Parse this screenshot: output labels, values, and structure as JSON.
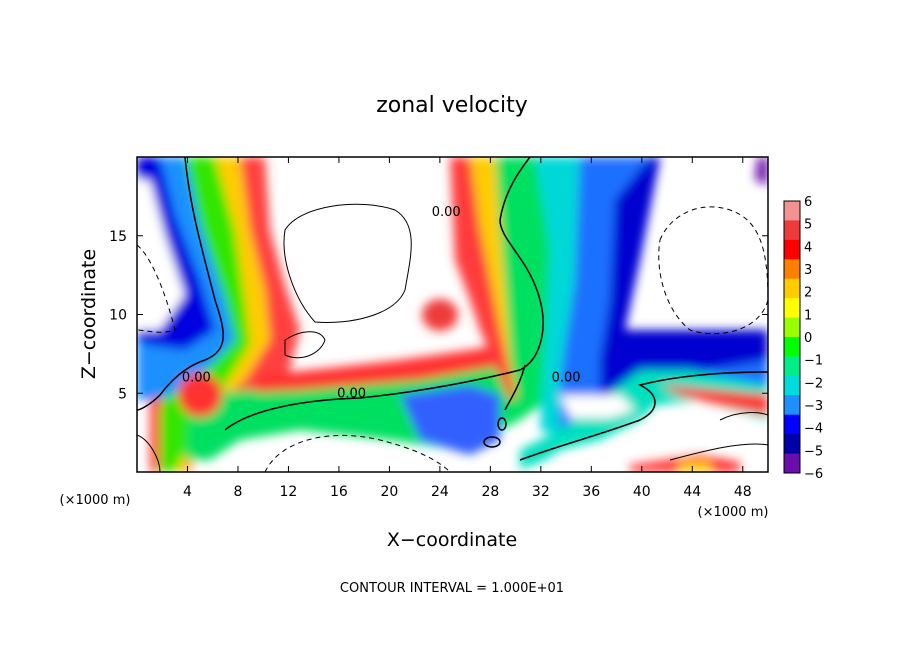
{
  "chart_data": {
    "type": "heatmap",
    "title": "zonal velocity",
    "xlabel": "X−coordinate",
    "ylabel": "Z−coordinate",
    "x_unit_left": "(×1000 m)",
    "x_unit_right": "(×1000 m)",
    "footer": "CONTOUR INTERVAL = 1.000E+01",
    "xlim": [
      0,
      50
    ],
    "ylim": [
      0,
      20
    ],
    "x_ticks": [
      4,
      8,
      12,
      16,
      20,
      24,
      28,
      32,
      36,
      40,
      44,
      48
    ],
    "y_ticks": [
      5,
      10,
      15
    ],
    "colorbar": {
      "levels": [
        "6",
        "5",
        "4",
        "3",
        "2",
        "1",
        "0",
        "−1",
        "−2",
        "−3",
        "−4",
        "−5",
        "−6"
      ],
      "colors": [
        "#f49191",
        "#ee3a3a",
        "#ff0000",
        "#ff7f00",
        "#ffcc00",
        "#ffff00",
        "#99ff00",
        "#00ff00",
        "#00ee88",
        "#00dcdc",
        "#1e90ff",
        "#0000ff",
        "#0000aa",
        "#6a0dad"
      ]
    },
    "contour_labels": [
      {
        "text": "0.00",
        "x": 24.5,
        "z": 16.5
      },
      {
        "text": "0.00",
        "x": 4.7,
        "z": 6.0
      },
      {
        "text": "0.00",
        "x": 17.0,
        "z": 5.0
      },
      {
        "text": "0.00",
        "x": 34.0,
        "z": 6.0
      }
    ],
    "contour_interval": "1.000E+01"
  }
}
